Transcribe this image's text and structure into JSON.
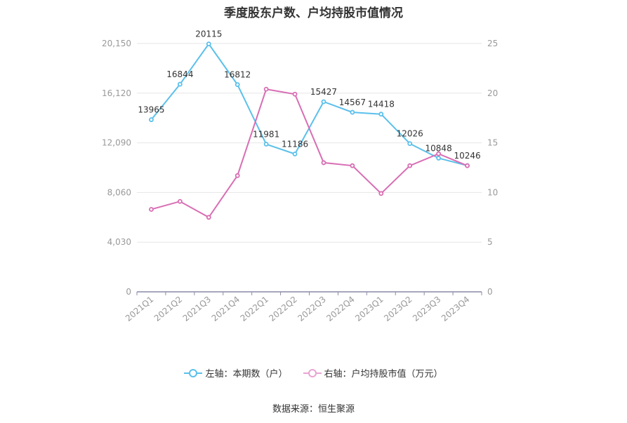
{
  "chart_data": {
    "type": "line",
    "title": "季度股东户数、户均持股市值情况",
    "categories": [
      "2021Q1",
      "2021Q2",
      "2021Q3",
      "2021Q4",
      "2022Q1",
      "2022Q2",
      "2022Q3",
      "2022Q4",
      "2023Q1",
      "2023Q2",
      "2023Q3",
      "2023Q4"
    ],
    "y_left": {
      "ticks": [
        "0",
        "4,030",
        "8,060",
        "12,090",
        "16,120",
        "20,150"
      ],
      "min": 0,
      "max": 20150
    },
    "y_right": {
      "ticks": [
        "0",
        "5",
        "10",
        "15",
        "20",
        "25"
      ],
      "min": 0,
      "max": 25
    },
    "series": [
      {
        "name": "左轴：本期数（户）",
        "axis": "left",
        "color": "#5bc0eb",
        "values": [
          13965,
          16844,
          20115,
          16812,
          11981,
          11186,
          15427,
          14567,
          14418,
          12026,
          10848,
          10246
        ],
        "labels": [
          "13965",
          "16844",
          "20115",
          "16812",
          "11981",
          "11186",
          "15427",
          "14567",
          "14418",
          "12026",
          "10848",
          "10246"
        ]
      },
      {
        "name": "右轴：户均持股市值（万元）",
        "axis": "right",
        "color": "#d86eb4",
        "values": [
          8.3,
          9.1,
          7.5,
          11.7,
          20.4,
          19.9,
          13.0,
          12.7,
          9.9,
          12.7,
          13.9,
          12.7
        ]
      }
    ],
    "grid": true,
    "legend_position": "bottom"
  },
  "source_text": "数据来源：恒生聚源"
}
